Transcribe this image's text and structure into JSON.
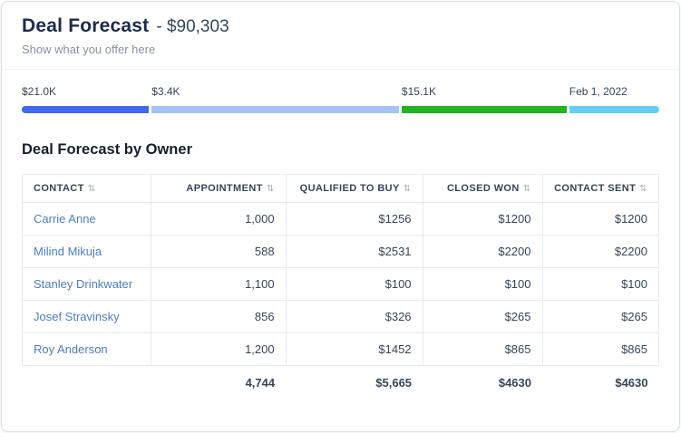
{
  "header": {
    "title": "Deal Forecast",
    "amount": "- $90,303",
    "subtitle": "Show what you offer here"
  },
  "forecast_bar": {
    "segments": [
      {
        "label": "$21.0K",
        "color": "#3e6bf2",
        "width_pct": 20.2
      },
      {
        "label": "$3.4K",
        "color": "#a6c0f8",
        "width_pct": 39.3
      },
      {
        "label": "$15.1K",
        "color": "#1fb51f",
        "width_pct": 26.2
      },
      {
        "label": "Feb 1, 2022",
        "color": "#63cff7",
        "width_pct": 14.3
      }
    ]
  },
  "icons": {
    "sort": "⇅"
  },
  "table": {
    "title": "Deal Forecast by Owner",
    "columns": [
      {
        "label": "CONTACT"
      },
      {
        "label": "APPOINTMENT"
      },
      {
        "label": "QUALIFIED TO BUY"
      },
      {
        "label": "CLOSED WON"
      },
      {
        "label": "CONTACT SENT"
      }
    ],
    "rows": [
      [
        "Carrie Anne",
        "1,000",
        "$1256",
        "$1200",
        "$1200"
      ],
      [
        "Milind Mikuja",
        "588",
        "$2531",
        "$2200",
        "$2200"
      ],
      [
        "Stanley Drinkwater",
        "1,100",
        "$100",
        "$100",
        "$100"
      ],
      [
        "Josef Stravinsky",
        "856",
        "$326",
        "$265",
        "$265"
      ],
      [
        "Roy Anderson",
        "1,200",
        "$1452",
        "$865",
        "$865"
      ]
    ],
    "totals": [
      "",
      "4,744",
      "$5,665",
      "$4630",
      "$4630"
    ]
  }
}
